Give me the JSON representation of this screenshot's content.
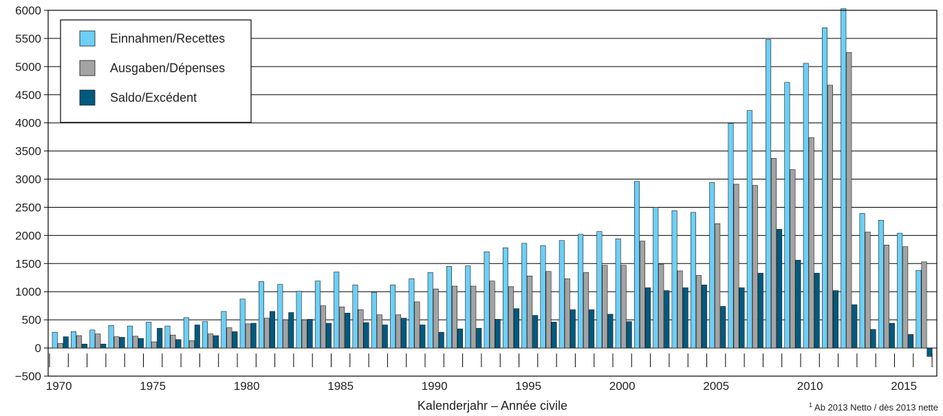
{
  "chart_data": {
    "type": "bar",
    "title": "",
    "xlabel": "Kalenderjahr – Année civile",
    "ylabel": "",
    "footnote_mark": "1",
    "footnote_text": "Ab 2013 Netto / dès 2013 nette",
    "ylim": [
      -500,
      6000
    ],
    "y_ticks": [
      -500,
      0,
      500,
      1000,
      1500,
      2000,
      2500,
      3000,
      3500,
      4000,
      4500,
      5000,
      5500,
      6000
    ],
    "y_tick_labels": [
      "−500",
      "0",
      "500",
      "1000",
      "1500",
      "2000",
      "2500",
      "3000",
      "3500",
      "4000",
      "4500",
      "5000",
      "5500",
      "6000"
    ],
    "x_tick_labels": [
      "1970",
      "1975",
      "1980",
      "1985",
      "1990",
      "1995",
      "2000",
      "2005",
      "2010",
      "2015"
    ],
    "categories": [
      1970,
      1971,
      1972,
      1973,
      1974,
      1975,
      1976,
      1977,
      1978,
      1979,
      1980,
      1981,
      1982,
      1983,
      1984,
      1985,
      1986,
      1987,
      1988,
      1989,
      1990,
      1991,
      1992,
      1993,
      1994,
      1995,
      1996,
      1997,
      1998,
      1999,
      2000,
      2001,
      2002,
      2003,
      2004,
      2005,
      2006,
      2007,
      2008,
      2009,
      2010,
      2011,
      2012,
      2013,
      2014,
      2015,
      2016
    ],
    "grid": true,
    "legend_position": "top-left",
    "series": [
      {
        "name": "Einnahmen/Recettes",
        "color": "#6dcff6",
        "values": [
          280,
          290,
          320,
          400,
          390,
          460,
          390,
          540,
          470,
          650,
          870,
          1180,
          1130,
          1010,
          1190,
          1350,
          1120,
          990,
          1120,
          1230,
          1340,
          1450,
          1460,
          1710,
          1780,
          1860,
          1820,
          1910,
          2020,
          2070,
          1940,
          2960,
          2500,
          2440,
          2410,
          2940,
          3990,
          4220,
          5480,
          4720,
          5060,
          5690,
          6030,
          2390,
          2270,
          2040,
          1380
        ]
      },
      {
        "name": "Ausgaben/Dépenses",
        "color": "#a3a3a3",
        "values": [
          80,
          220,
          250,
          200,
          210,
          110,
          230,
          130,
          250,
          360,
          430,
          530,
          500,
          500,
          750,
          730,
          680,
          590,
          590,
          820,
          1050,
          1100,
          1100,
          1190,
          1090,
          1280,
          1360,
          1230,
          1340,
          1470,
          1470,
          1900,
          1490,
          1370,
          1290,
          2210,
          2910,
          2890,
          3370,
          3170,
          3740,
          4670,
          5250,
          2060,
          1830,
          1800,
          1530
        ]
      },
      {
        "name": "Saldo/Excédent",
        "color": "#005a80",
        "values": [
          200,
          70,
          70,
          190,
          170,
          350,
          150,
          410,
          220,
          290,
          440,
          650,
          630,
          510,
          440,
          620,
          450,
          410,
          530,
          410,
          280,
          340,
          350,
          510,
          700,
          580,
          460,
          680,
          680,
          600,
          470,
          1070,
          1020,
          1070,
          1120,
          740,
          1070,
          1330,
          2110,
          1560,
          1330,
          1020,
          770,
          330,
          440,
          240,
          -150
        ]
      }
    ]
  }
}
